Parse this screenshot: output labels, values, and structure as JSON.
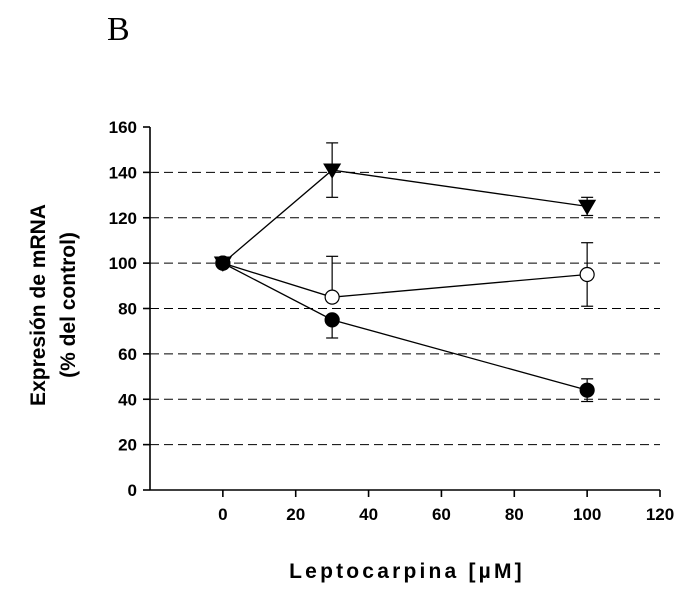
{
  "panel_label": "B",
  "chart_data": {
    "type": "scatter",
    "xlabel": "Leptocarpina [µM]",
    "ylabel_line1": "Expresión de mRNA",
    "ylabel_line2": "(% del control)",
    "xlim": [
      -20,
      120
    ],
    "ylim": [
      0,
      160
    ],
    "xticks": [
      0,
      20,
      40,
      60,
      80,
      100,
      120
    ],
    "yticks": [
      0,
      20,
      40,
      60,
      80,
      100,
      120,
      140,
      160
    ],
    "grid": {
      "y": true,
      "x": false,
      "style": "dashed",
      "values": [
        20,
        40,
        60,
        80,
        100,
        120,
        140
      ]
    },
    "series": [
      {
        "marker": "triangle-down",
        "fill": "#000000",
        "x": [
          0,
          30,
          100
        ],
        "y": [
          100,
          141,
          125
        ],
        "err_upper": [
          0,
          12,
          4
        ],
        "err_lower": [
          0,
          12,
          4
        ]
      },
      {
        "marker": "circle",
        "fill": "#ffffff",
        "x": [
          0,
          30,
          100
        ],
        "y": [
          100,
          85,
          95
        ],
        "err_upper": [
          0,
          18,
          14
        ],
        "err_lower": [
          0,
          0,
          14
        ]
      },
      {
        "marker": "circle",
        "fill": "#000000",
        "x": [
          0,
          30,
          100
        ],
        "y": [
          100,
          75,
          44
        ],
        "err_upper": [
          0,
          0,
          5
        ],
        "err_lower": [
          0,
          8,
          5
        ]
      }
    ]
  }
}
